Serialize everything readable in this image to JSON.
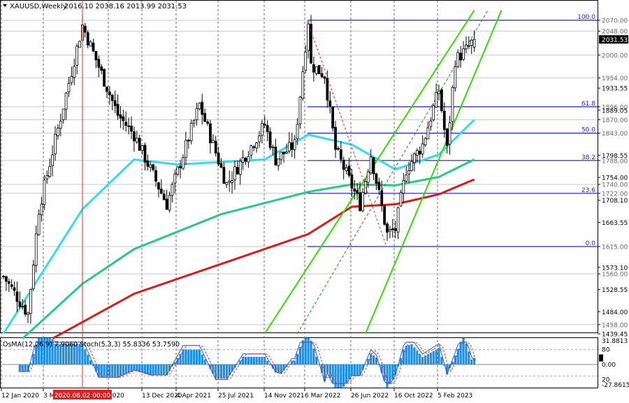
{
  "header": {
    "symbol_timeframe": "XAUUSD,Weekly",
    "ohlc": "2016.10 2038.16 2013.99 2031.53"
  },
  "indicator_header": "OsMA(12,26,9) 7.9060  Stoch(5,3,3) 55.8336 53.7590",
  "time_labels": [
    "12 Jan 2020",
    "3 M",
    "2020",
    "13 Dec 2020",
    "4 Apr 2021",
    "25 Jul 2021",
    "14 Nov 2021",
    "6 Mar 2022",
    "26 Jun 2022",
    "16 Oct 2022",
    "5 Feb 2023"
  ],
  "crosshair_time_label": "2020.08.02 00:00",
  "price_labels": [
    {
      "text": "2070.00",
      "value": 2070.0,
      "kind": "level"
    },
    {
      "text": "2048.00",
      "value": 2048.0,
      "kind": "level"
    },
    {
      "text": "2031.53",
      "value": 2031.53,
      "kind": "current"
    },
    {
      "text": "2000.00",
      "value": 2000.0,
      "kind": "level"
    },
    {
      "text": "1954.00",
      "value": 1954.0,
      "kind": "level"
    },
    {
      "text": "1933.55",
      "value": 1933.55,
      "kind": "tick"
    },
    {
      "text": "1896.00",
      "value": 1896.0,
      "kind": "level"
    },
    {
      "text": "1889.05",
      "value": 1889.05,
      "kind": "tick"
    },
    {
      "text": "1870.00",
      "value": 1870.0,
      "kind": "level"
    },
    {
      "text": "1843.00",
      "value": 1843.0,
      "kind": "level"
    },
    {
      "text": "1798.55",
      "value": 1798.55,
      "kind": "tick"
    },
    {
      "text": "1788.00",
      "value": 1788.0,
      "kind": "level"
    },
    {
      "text": "1754.00",
      "value": 1754.0,
      "kind": "tick"
    },
    {
      "text": "1740.00",
      "value": 1740.0,
      "kind": "level"
    },
    {
      "text": "1722.00",
      "value": 1722.0,
      "kind": "level"
    },
    {
      "text": "1708.10",
      "value": 1708.1,
      "kind": "tick"
    },
    {
      "text": "1663.55",
      "value": 1663.55,
      "kind": "tick"
    },
    {
      "text": "1615.00",
      "value": 1615.0,
      "kind": "level"
    },
    {
      "text": "1573.10",
      "value": 1573.1,
      "kind": "tick"
    },
    {
      "text": "1560.00",
      "value": 1560.0,
      "kind": "level"
    },
    {
      "text": "1528.55",
      "value": 1528.55,
      "kind": "tick"
    },
    {
      "text": "1484.00",
      "value": 1484.0,
      "kind": "tick"
    },
    {
      "text": "1458.00",
      "value": 1458.0,
      "kind": "level"
    },
    {
      "text": "1439.45",
      "value": 1439.45,
      "kind": "tick"
    }
  ],
  "fib_levels": [
    {
      "label": "100.0",
      "value": 2070.0
    },
    {
      "label": "61.8",
      "value": 1896.0
    },
    {
      "label": "50.0",
      "value": 1843.0
    },
    {
      "label": "38.2",
      "value": 1788.0
    },
    {
      "label": "23.6",
      "value": 1722.0
    },
    {
      "label": "0.0",
      "value": 1615.0
    }
  ],
  "indicator_axis_labels": [
    "31.8813",
    "80",
    "0.00",
    "20",
    "-27.8615"
  ],
  "colors": {
    "fib": "#2222cc",
    "ema_fast": "#33dcec",
    "ema_mid": "#22cc88",
    "ema_slow": "#e01818",
    "channel": "#33dd00",
    "candle": "#000000",
    "osma": "#1e8fe0",
    "stoch_main": "#2255dd",
    "stoch_signal": "#e03030",
    "crosshair": "#ff2020",
    "current_bg": "#000000"
  },
  "chart_data": {
    "type": "candlestick",
    "symbol": "XAUUSD",
    "timeframe": "Weekly",
    "last_bar": {
      "open": 2016.1,
      "high": 2038.16,
      "low": 2013.99,
      "close": 2031.53
    },
    "y_range": [
      1430,
      2090
    ],
    "price_anchors": [
      {
        "date": "2020-01-12",
        "price": 1555
      },
      {
        "date": "2020-03-15",
        "price": 1480
      },
      {
        "date": "2020-04-12",
        "price": 1690
      },
      {
        "date": "2020-08-02",
        "price": 2060
      },
      {
        "date": "2020-11-01",
        "price": 1880
      },
      {
        "date": "2020-12-13",
        "price": 1840
      },
      {
        "date": "2021-03-07",
        "price": 1700
      },
      {
        "date": "2021-05-30",
        "price": 1900
      },
      {
        "date": "2021-08-08",
        "price": 1740
      },
      {
        "date": "2021-11-14",
        "price": 1860
      },
      {
        "date": "2021-12-12",
        "price": 1790
      },
      {
        "date": "2022-01-30",
        "price": 1820
      },
      {
        "date": "2022-03-06",
        "price": 2070
      },
      {
        "date": "2022-03-13",
        "price": 1980
      },
      {
        "date": "2022-04-17",
        "price": 1960
      },
      {
        "date": "2022-05-15",
        "price": 1810
      },
      {
        "date": "2022-07-17",
        "price": 1700
      },
      {
        "date": "2022-08-14",
        "price": 1800
      },
      {
        "date": "2022-09-25",
        "price": 1640
      },
      {
        "date": "2022-10-16",
        "price": 1650
      },
      {
        "date": "2022-11-13",
        "price": 1770
      },
      {
        "date": "2022-12-25",
        "price": 1820
      },
      {
        "date": "2023-02-05",
        "price": 1930
      },
      {
        "date": "2023-02-26",
        "price": 1810
      },
      {
        "date": "2023-03-19",
        "price": 1990
      },
      {
        "date": "2023-04-16",
        "price": 2010
      },
      {
        "date": "2023-05-07",
        "price": 2031.53
      }
    ],
    "moving_averages": [
      {
        "color": "#33dcec",
        "points": [
          {
            "date": "2020-01-12",
            "price": 1440
          },
          {
            "date": "2020-08-02",
            "price": 1690
          },
          {
            "date": "2020-12-13",
            "price": 1790
          },
          {
            "date": "2021-04-04",
            "price": 1780
          },
          {
            "date": "2021-11-14",
            "price": 1790
          },
          {
            "date": "2022-03-06",
            "price": 1840
          },
          {
            "date": "2022-06-26",
            "price": 1820
          },
          {
            "date": "2022-10-16",
            "price": 1770
          },
          {
            "date": "2023-02-05",
            "price": 1800
          },
          {
            "date": "2023-05-07",
            "price": 1870
          }
        ]
      },
      {
        "color": "#22cc88",
        "points": [
          {
            "date": "2020-03-01",
            "price": 1430
          },
          {
            "date": "2020-08-02",
            "price": 1540
          },
          {
            "date": "2020-12-13",
            "price": 1610
          },
          {
            "date": "2021-07-25",
            "price": 1680
          },
          {
            "date": "2022-03-06",
            "price": 1725
          },
          {
            "date": "2022-06-26",
            "price": 1740
          },
          {
            "date": "2022-10-16",
            "price": 1738
          },
          {
            "date": "2023-02-05",
            "price": 1755
          },
          {
            "date": "2023-05-07",
            "price": 1790
          }
        ]
      },
      {
        "color": "#e01818",
        "points": [
          {
            "date": "2020-05-17",
            "price": 1430
          },
          {
            "date": "2020-12-13",
            "price": 1520
          },
          {
            "date": "2021-07-25",
            "price": 1580
          },
          {
            "date": "2022-03-06",
            "price": 1640
          },
          {
            "date": "2022-06-26",
            "price": 1695
          },
          {
            "date": "2022-10-16",
            "price": 1700
          },
          {
            "date": "2023-02-05",
            "price": 1720
          },
          {
            "date": "2023-05-07",
            "price": 1750
          }
        ]
      }
    ],
    "channel_lines": [
      {
        "style": "solid",
        "from": {
          "date": "2021-11-14",
          "price": 1440
        },
        "to": {
          "date": "2023-05-07",
          "price": 2090
        }
      },
      {
        "style": "solid",
        "from": {
          "date": "2022-07-31",
          "price": 1440
        },
        "to": {
          "date": "2023-07-16",
          "price": 2090
        }
      },
      {
        "style": "dashed",
        "from": {
          "date": "2022-02-06",
          "price": 1440
        },
        "to": {
          "date": "2023-06-11",
          "price": 2090
        }
      }
    ],
    "indicator": {
      "name": "OsMA(12,26,9)",
      "value": 7.906,
      "stochastic": {
        "params": "5,3,3",
        "main": 55.8336,
        "signal": 53.759
      },
      "range": [
        -27.8615,
        31.8813
      ]
    }
  }
}
